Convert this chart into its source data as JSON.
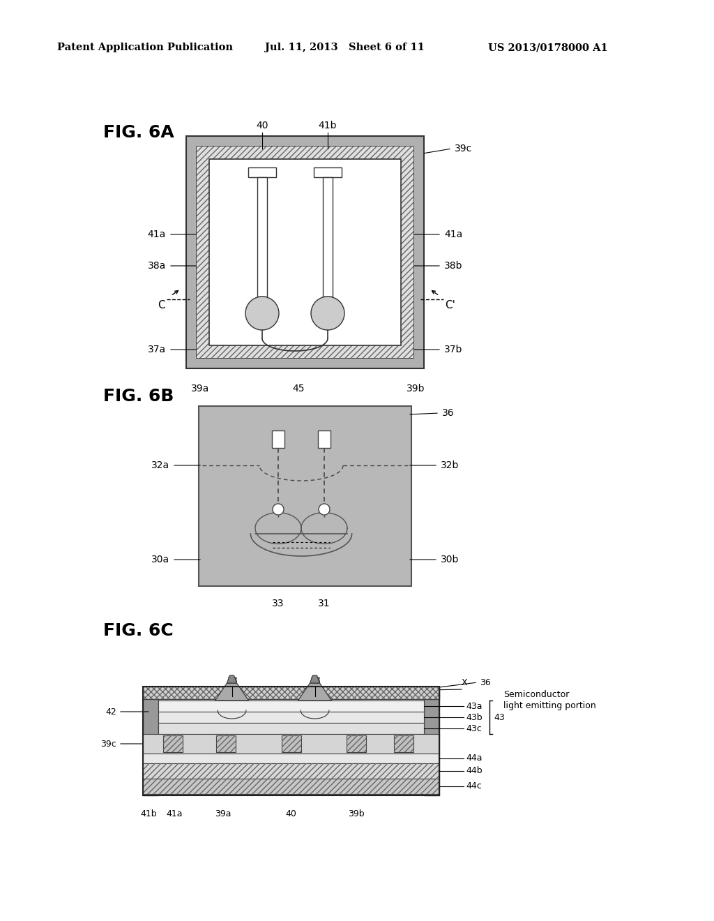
{
  "header_left": "Patent Application Publication",
  "header_mid": "Jul. 11, 2013   Sheet 6 of 11",
  "header_right": "US 2013/0178000 A1",
  "bg_color": "#ffffff",
  "fig_label_6A": "FIG. 6A",
  "fig_label_6B": "FIG. 6B",
  "fig_label_6C": "FIG. 6C",
  "outer_gray": "#b0b0b0",
  "inner_hatch_gray": "#d8d8d8",
  "medium_gray": "#aaaaaa",
  "dark_gray": "#555555",
  "mold_gray": "#999999"
}
